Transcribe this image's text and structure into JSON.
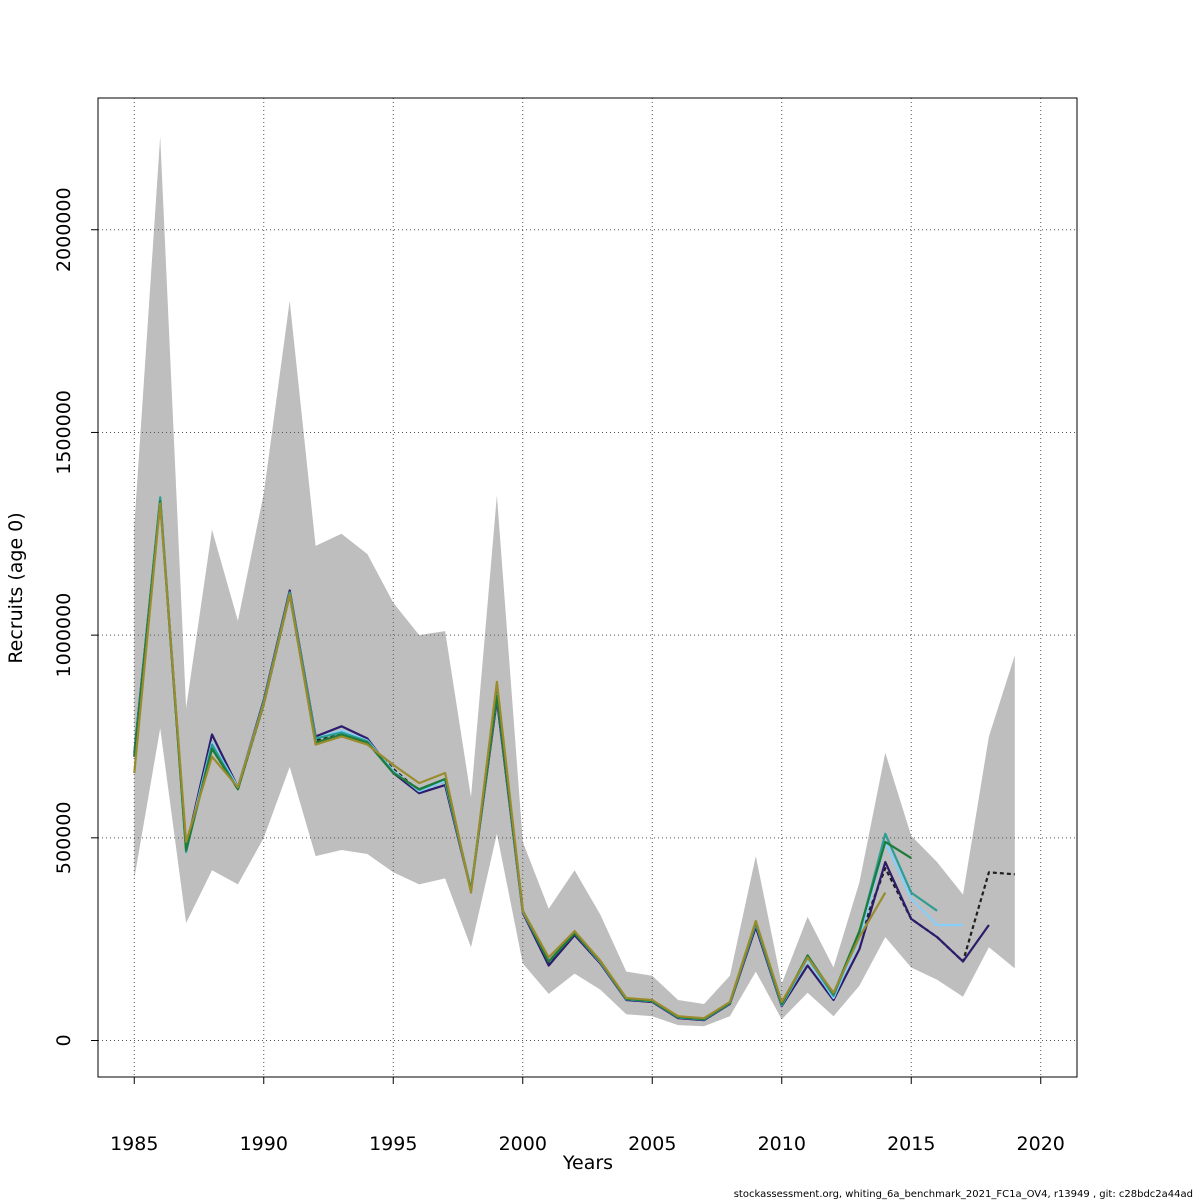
{
  "chart_data": {
    "type": "line",
    "xlabel": "Years",
    "ylabel": "Recruits (age 0)",
    "xlim": [
      1983.6,
      2021.4
    ],
    "ylim": [
      -90000,
      2325000
    ],
    "x_ticks": [
      1985,
      1990,
      1995,
      2000,
      2005,
      2010,
      2015,
      2020
    ],
    "y_ticks": [
      0,
      500000,
      1000000,
      1500000,
      2000000
    ],
    "x_tick_labels": [
      "1985",
      "1990",
      "1995",
      "2000",
      "2005",
      "2010",
      "2015",
      "2020"
    ],
    "y_tick_labels": [
      "0",
      "500000",
      "1000000",
      "1500000",
      "2000000"
    ],
    "grid": true,
    "confidence_band": {
      "color": "#bebebe",
      "x": [
        1985,
        1986,
        1987,
        1988,
        1989,
        1990,
        1991,
        1992,
        1993,
        1994,
        1995,
        1996,
        1997,
        1998,
        1999,
        2000,
        2001,
        2002,
        2003,
        2004,
        2005,
        2006,
        2007,
        2008,
        2009,
        2010,
        2011,
        2012,
        2013,
        2014,
        2015,
        2016,
        2017,
        2018,
        2019
      ],
      "upper": [
        1270000,
        2230000,
        820000,
        1260000,
        1035000,
        1350000,
        1825000,
        1220000,
        1250000,
        1200000,
        1080000,
        1000000,
        1010000,
        600000,
        1345000,
        490000,
        325000,
        420000,
        310000,
        170000,
        160000,
        100000,
        90000,
        160000,
        455000,
        140000,
        305000,
        180000,
        390000,
        710000,
        505000,
        440000,
        360000,
        750000,
        950000
      ],
      "lower": [
        400000,
        770000,
        290000,
        420000,
        385000,
        500000,
        675000,
        455000,
        470000,
        460000,
        415000,
        385000,
        400000,
        230000,
        510000,
        190000,
        115000,
        165000,
        125000,
        65000,
        60000,
        38000,
        35000,
        60000,
        170000,
        52000,
        118000,
        60000,
        135000,
        255000,
        180000,
        150000,
        108000,
        230000,
        178000
      ]
    },
    "series": [
      {
        "color": "#1f1f1f",
        "dashed": true,
        "x": [
          1985,
          1986,
          1987,
          1988,
          1989,
          1990,
          1991,
          1992,
          1993,
          1994,
          1995,
          1996,
          1997,
          1998,
          1999,
          2000,
          2001,
          2002,
          2003,
          2004,
          2005,
          2006,
          2007,
          2008,
          2009,
          2010,
          2011,
          2012,
          2013,
          2014,
          2015,
          2016,
          2017,
          2018,
          2019
        ],
        "values": [
          700000,
          1330000,
          475000,
          720000,
          620000,
          830000,
          1100000,
          740000,
          760000,
          735000,
          670000,
          615000,
          640000,
          370000,
          860000,
          320000,
          190000,
          265000,
          195000,
          103000,
          98000,
          58000,
          53000,
          93000,
          285000,
          88000,
          200000,
          110000,
          255000,
          425000,
          300000,
          255000,
          195000,
          415000,
          410000
        ]
      },
      {
        "color": "#2d1b6b",
        "x": [
          1985,
          1986,
          1987,
          1988,
          1989,
          1990,
          1991,
          1992,
          1993,
          1994,
          1995,
          1996,
          1997,
          1998,
          1999,
          2000,
          2001,
          2002,
          2003,
          2004,
          2005,
          2006,
          2007,
          2008,
          2009,
          2010,
          2011,
          2012,
          2013,
          2014,
          2015,
          2016,
          2017,
          2018
        ],
        "values": [
          710000,
          1335000,
          475000,
          755000,
          625000,
          840000,
          1110000,
          750000,
          775000,
          745000,
          660000,
          610000,
          630000,
          370000,
          840000,
          315000,
          185000,
          260000,
          190000,
          100000,
          95000,
          55000,
          50000,
          90000,
          280000,
          85000,
          185000,
          100000,
          225000,
          440000,
          300000,
          255000,
          195000,
          285000
        ]
      },
      {
        "color": "#87cefa",
        "x": [
          1985,
          1986,
          1987,
          1988,
          1989,
          1990,
          1991,
          1992,
          1993,
          1994,
          1995,
          1996,
          1997,
          1998,
          1999,
          2000,
          2001,
          2002,
          2003,
          2004,
          2005,
          2006,
          2007,
          2008,
          2009,
          2010,
          2011,
          2012,
          2013,
          2014,
          2015,
          2016,
          2017
        ],
        "values": [
          700000,
          1330000,
          475000,
          735000,
          625000,
          835000,
          1105000,
          745000,
          765000,
          740000,
          665000,
          615000,
          640000,
          370000,
          850000,
          318000,
          195000,
          265000,
          193000,
          102000,
          97000,
          57000,
          52000,
          92000,
          288000,
          87000,
          200000,
          105000,
          250000,
          490000,
          350000,
          285000,
          285000
        ]
      },
      {
        "color": "#2e9e94",
        "x": [
          1985,
          1986,
          1987,
          1988,
          1989,
          1990,
          1991,
          1992,
          1993,
          1994,
          1995,
          1996,
          1997,
          1998,
          1999,
          2000,
          2001,
          2002,
          2003,
          2004,
          2005,
          2006,
          2007,
          2008,
          2009,
          2010,
          2011,
          2012,
          2013,
          2014,
          2015,
          2016
        ],
        "values": [
          705000,
          1340000,
          465000,
          730000,
          620000,
          835000,
          1105000,
          745000,
          760000,
          738000,
          662000,
          618000,
          645000,
          372000,
          855000,
          320000,
          195000,
          265000,
          195000,
          102000,
          97000,
          57000,
          52000,
          92000,
          290000,
          88000,
          205000,
          110000,
          265000,
          510000,
          365000,
          320000
        ]
      },
      {
        "color": "#1e7b3a",
        "x": [
          1985,
          1986,
          1987,
          1988,
          1989,
          1990,
          1991,
          1992,
          1993,
          1994,
          1995,
          1996,
          1997,
          1998,
          1999,
          2000,
          2001,
          2002,
          2003,
          2004,
          2005,
          2006,
          2007,
          2008,
          2009,
          2010,
          2011,
          2012,
          2013,
          2014,
          2015
        ],
        "values": [
          700000,
          1330000,
          470000,
          720000,
          620000,
          830000,
          1100000,
          735000,
          755000,
          735000,
          660000,
          620000,
          645000,
          370000,
          850000,
          320000,
          195000,
          265000,
          195000,
          103000,
          98000,
          58000,
          53000,
          93000,
          292000,
          90000,
          210000,
          115000,
          270000,
          490000,
          450000
        ]
      },
      {
        "color": "#9a8c2c",
        "x": [
          1985,
          1986,
          1987,
          1988,
          1989,
          1990,
          1991,
          1992,
          1993,
          1994,
          1995,
          1996,
          1997,
          1998,
          1999,
          2000,
          2001,
          2002,
          2003,
          2004,
          2005,
          2006,
          2007,
          2008,
          2009,
          2010,
          2011,
          2012,
          2013,
          2014
        ],
        "values": [
          660000,
          1325000,
          490000,
          700000,
          625000,
          830000,
          1100000,
          730000,
          750000,
          730000,
          680000,
          635000,
          660000,
          365000,
          885000,
          320000,
          205000,
          270000,
          197000,
          105000,
          100000,
          60000,
          55000,
          95000,
          295000,
          95000,
          205000,
          118000,
          255000,
          365000
        ]
      }
    ]
  },
  "footer": {
    "text": "stockassessment.org, whiting_6a_benchmark_2021_FC1a_OV4, r13949 , git: c28bdc2a44ad"
  }
}
